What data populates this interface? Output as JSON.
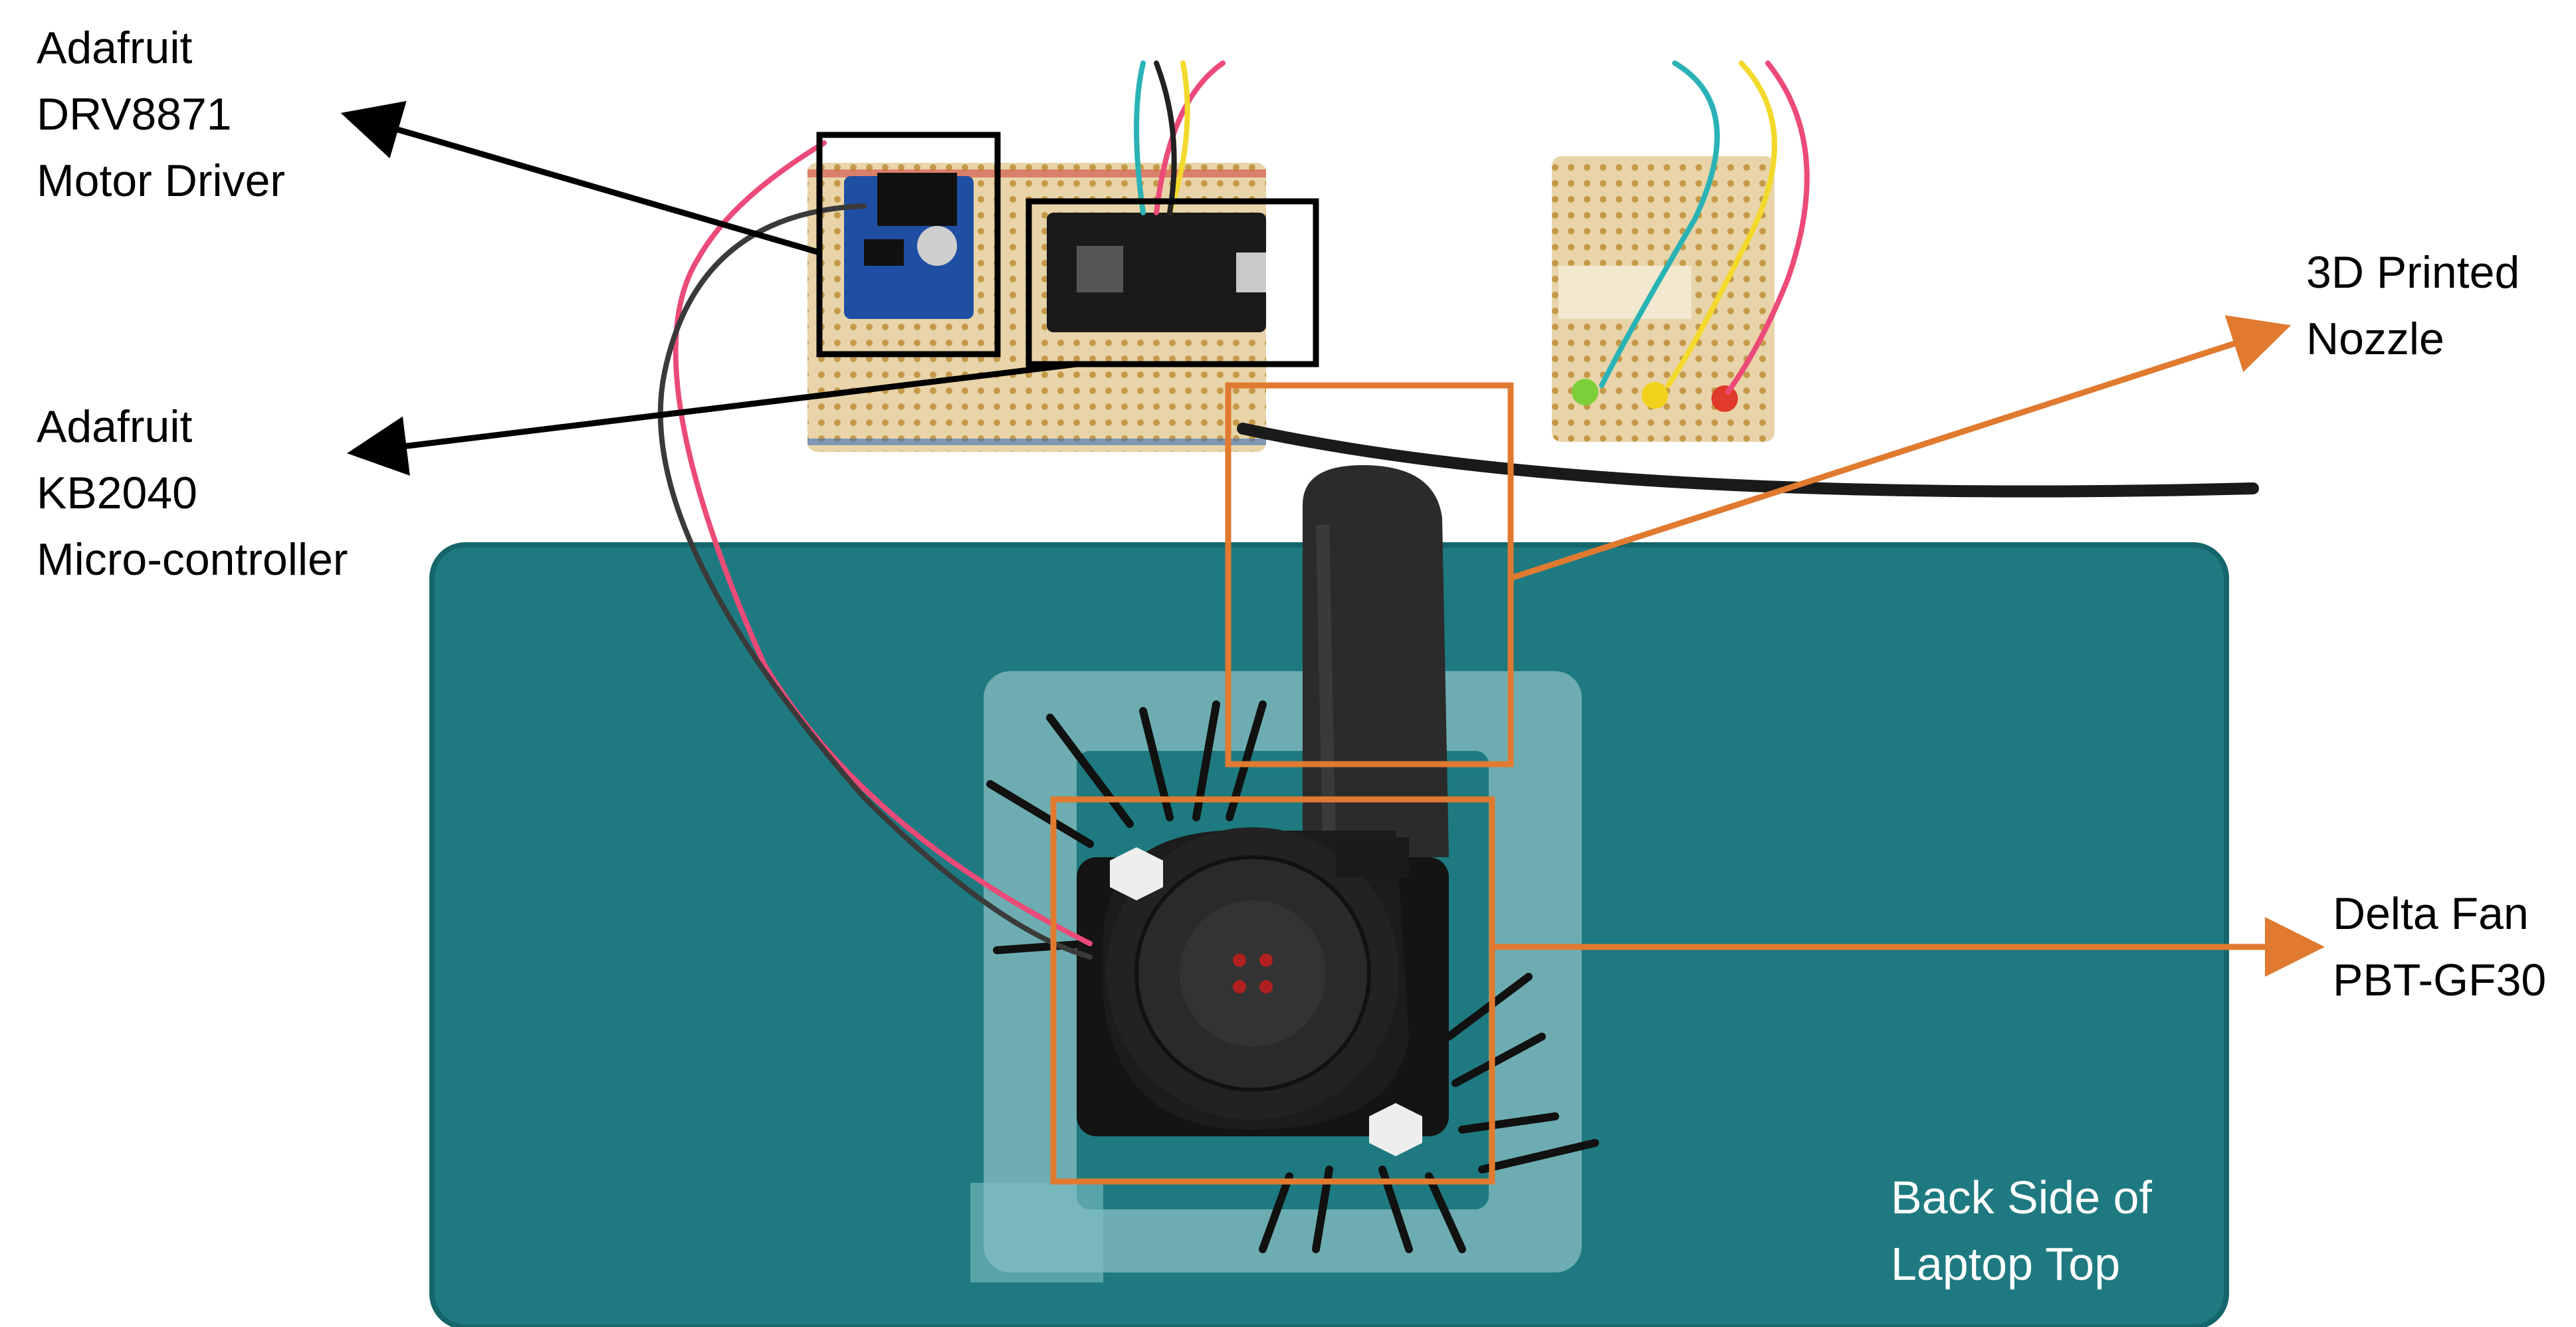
{
  "annotations": {
    "motor_driver": {
      "lines": [
        "Adafruit",
        "DRV8871",
        "Motor Driver"
      ]
    },
    "microcontroller": {
      "lines": [
        "Adafruit",
        "KB2040",
        "Micro-controller"
      ]
    },
    "nozzle": {
      "lines": [
        "3D Printed",
        "Nozzle"
      ]
    },
    "fan": {
      "lines": [
        "Delta Fan",
        "PBT-GF30"
      ]
    },
    "surface": {
      "lines": [
        "Back Side of",
        "Laptop Top"
      ]
    }
  },
  "colors": {
    "laptop_surface": "#1e7a80",
    "callout_black": "#000000",
    "callout_orange": "#e07a30",
    "pcb_blue": "#1f4fa3",
    "protoboard": "#e8d4a8",
    "fan_black": "#1c1c1c"
  }
}
